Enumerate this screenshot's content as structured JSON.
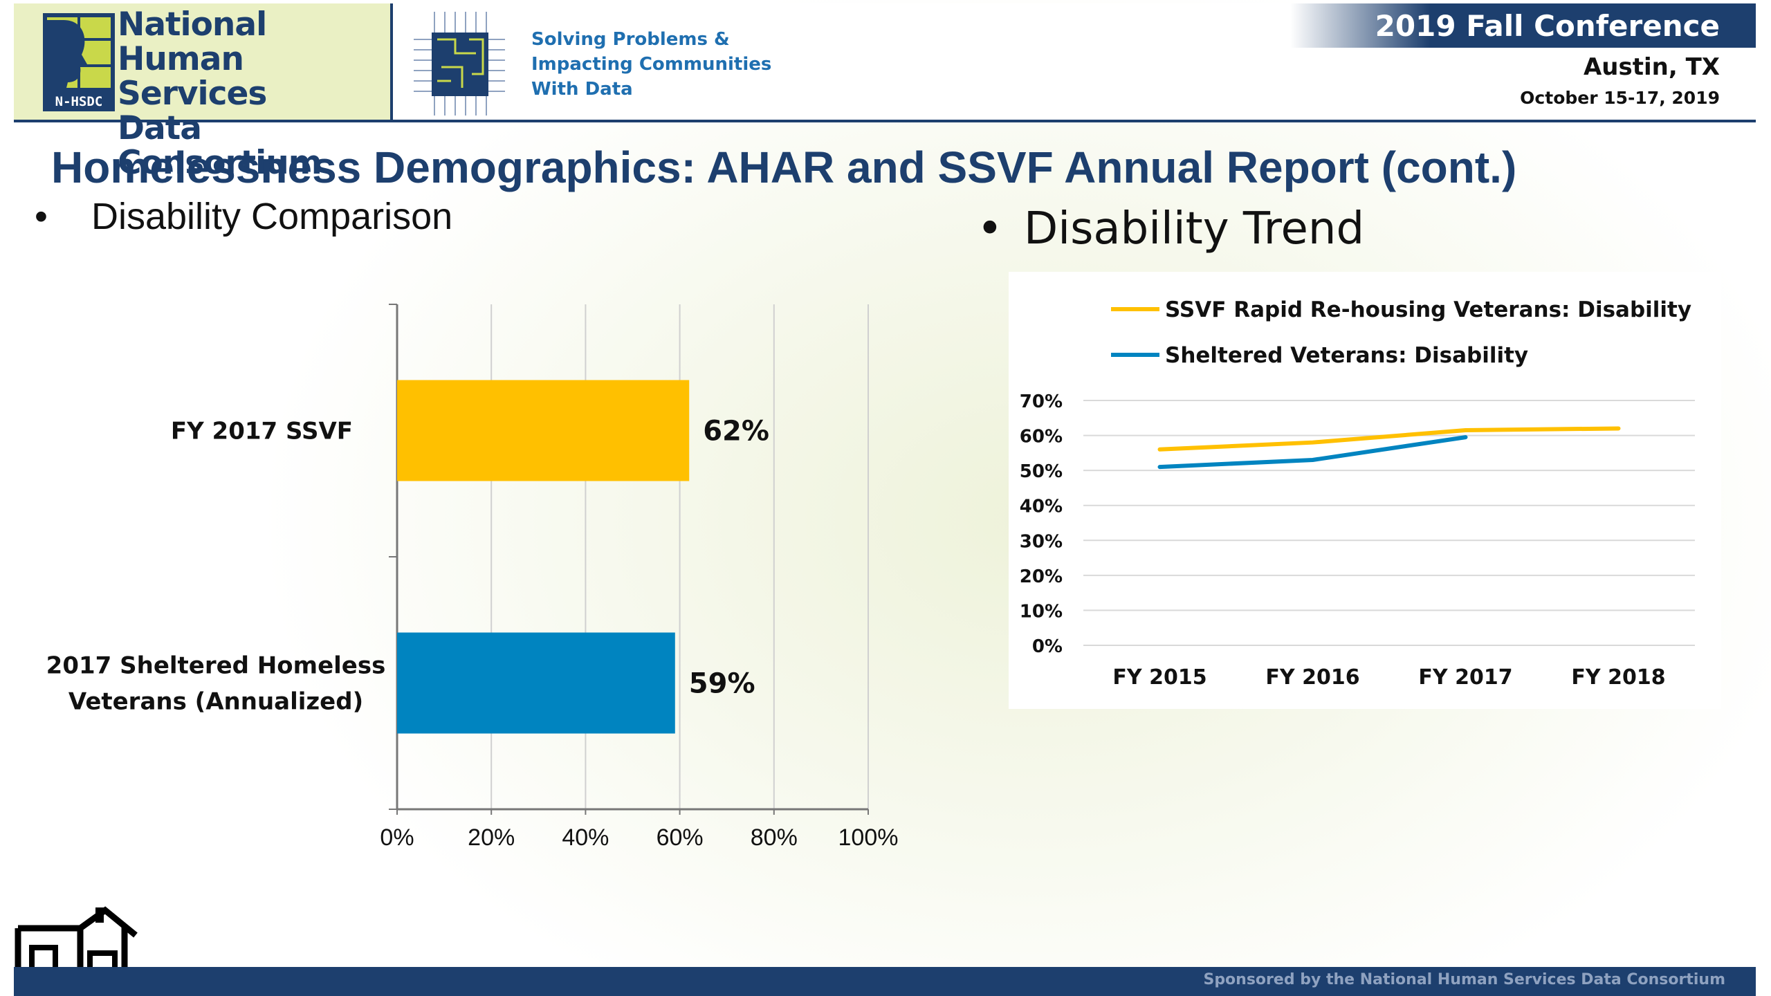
{
  "header": {
    "org_lines": [
      "National",
      "Human Services",
      "Data Consortium"
    ],
    "logo_abbrev": "N-HSDC",
    "tagline_lines": [
      "Solving Problems &",
      "Impacting Communities",
      "With Data"
    ],
    "conference_title": "2019 Fall Conference",
    "conference_city": "Austin, TX",
    "conference_dates": "October 15-17, 2019"
  },
  "slide": {
    "title": "Homelessness Demographics:  AHAR and SSVF Annual Report (cont.)",
    "bullet_left": "Disability Comparison",
    "bullet_right": "Disability Trend",
    "bullet_symbol": "•"
  },
  "colors": {
    "navy": "#1d3f6e",
    "ssvf_yellow": "#ffc000",
    "sheltered_blue": "#0084c0"
  },
  "chart_data": [
    {
      "type": "bar",
      "orientation": "horizontal",
      "categories": [
        {
          "lines": [
            "FY 2017 SSVF"
          ]
        },
        {
          "lines": [
            "2017 Sheltered Homeless",
            "Veterans (Annualized)"
          ]
        }
      ],
      "values": [
        62,
        59
      ],
      "value_labels": [
        "62%",
        "59%"
      ],
      "bar_colors": [
        "#ffc000",
        "#0084c0"
      ],
      "xlim": [
        0,
        100
      ],
      "xticks": [
        0,
        20,
        40,
        60,
        80,
        100
      ],
      "xtick_labels": [
        "0%",
        "20%",
        "40%",
        "60%",
        "80%",
        "100%"
      ],
      "grid": true
    },
    {
      "type": "line",
      "categories": [
        "FY 2015",
        "FY 2016",
        "FY 2017",
        "FY 2018"
      ],
      "series": [
        {
          "name": "SSVF Rapid Re-housing Veterans: Disability",
          "values": [
            56,
            58,
            61.5,
            62
          ],
          "color": "#ffc000"
        },
        {
          "name": "Sheltered Veterans: Disability",
          "values": [
            51,
            53,
            59.5,
            null
          ],
          "color": "#0084c0"
        }
      ],
      "ylim": [
        0,
        70
      ],
      "yticks": [
        0,
        10,
        20,
        30,
        40,
        50,
        60,
        70
      ],
      "ytick_labels": [
        "0%",
        "10%",
        "20%",
        "30%",
        "40%",
        "50%",
        "60%",
        "70%"
      ],
      "legend": "top",
      "grid": true
    }
  ],
  "footer": {
    "sponsor": "Sponsored by the National Human Services Data Consortium"
  }
}
